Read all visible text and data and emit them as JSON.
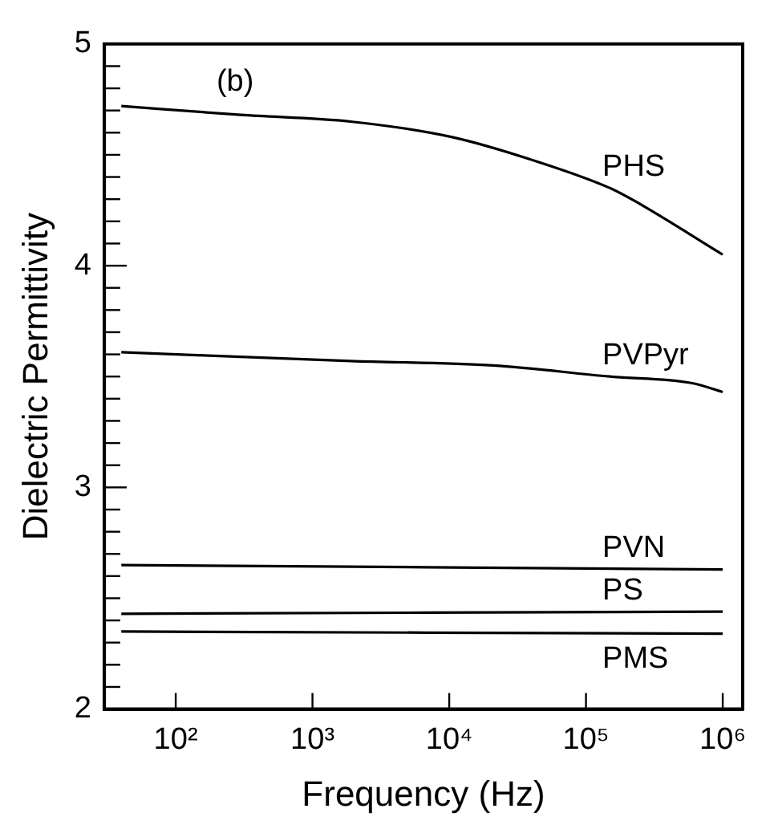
{
  "chart_data": {
    "type": "line",
    "xlabel": "Frequency (Hz)",
    "ylabel": "Dielectric Permittivity",
    "annotations": [
      "(b)"
    ],
    "log": "x",
    "grid": false,
    "legend": false,
    "marker": "none",
    "line_style": "solid",
    "xlim": [
      30,
      1400000
    ],
    "xticks": [
      {
        "value": 100,
        "label": "10²"
      },
      {
        "value": 1000,
        "label": "10³"
      },
      {
        "value": 10000,
        "label": "10⁴"
      },
      {
        "value": 100000,
        "label": "10⁵"
      },
      {
        "value": 1000000,
        "label": "10⁶"
      }
    ],
    "ylim": [
      2,
      5
    ],
    "yticks": [
      2,
      {
        "value": 2.1,
        "label": null
      },
      {
        "value": 2.2,
        "label": null
      },
      {
        "value": 2.3,
        "label": null
      },
      {
        "value": 2.4,
        "label": null
      },
      {
        "value": 2.5,
        "label": null
      },
      {
        "value": 2.6,
        "label": null
      },
      {
        "value": 2.7,
        "label": null
      },
      {
        "value": 2.8,
        "label": null
      },
      {
        "value": 2.9,
        "label": null
      },
      3,
      {
        "value": 3.1,
        "label": null
      },
      {
        "value": 3.2,
        "label": null
      },
      {
        "value": 3.3,
        "label": null
      },
      {
        "value": 3.4,
        "label": null
      },
      {
        "value": 3.5,
        "label": null
      },
      {
        "value": 3.6,
        "label": null
      },
      {
        "value": 3.7,
        "label": null
      },
      {
        "value": 3.8,
        "label": null
      },
      {
        "value": 3.9,
        "label": null
      },
      4,
      {
        "value": 4.1,
        "label": null
      },
      {
        "value": 4.2,
        "label": null
      },
      {
        "value": 4.3,
        "label": null
      },
      {
        "value": 4.4,
        "label": null
      },
      {
        "value": 4.5,
        "label": null
      },
      {
        "value": 4.6,
        "label": null
      },
      {
        "value": 4.7,
        "label": null
      },
      {
        "value": 4.8,
        "label": null
      },
      {
        "value": 4.9,
        "label": null
      },
      5
    ],
    "series": [
      {
        "name": "PHS",
        "color": "#000000",
        "x": [
          40,
          300,
          1900,
          10500,
          39000,
          150000,
          230000,
          1000000
        ],
        "values": [
          4.72,
          4.68,
          4.65,
          4.58,
          4.48,
          4.35,
          4.29,
          4.05
        ]
      },
      {
        "name": "PVPyr",
        "color": "#000000",
        "x": [
          40,
          1900,
          21000,
          150000,
          600000,
          1000000
        ],
        "values": [
          3.61,
          3.57,
          3.55,
          3.5,
          3.47,
          3.43
        ]
      },
      {
        "name": "PVN",
        "color": "#000000",
        "x": [
          40,
          1000000
        ],
        "values": [
          2.65,
          2.63
        ]
      },
      {
        "name": "PS",
        "color": "#000000",
        "x": [
          40,
          1000000
        ],
        "values": [
          2.43,
          2.44
        ]
      },
      {
        "name": "PMS",
        "color": "#000000",
        "x": [
          40,
          1000000
        ],
        "values": [
          2.35,
          2.34
        ]
      }
    ]
  }
}
